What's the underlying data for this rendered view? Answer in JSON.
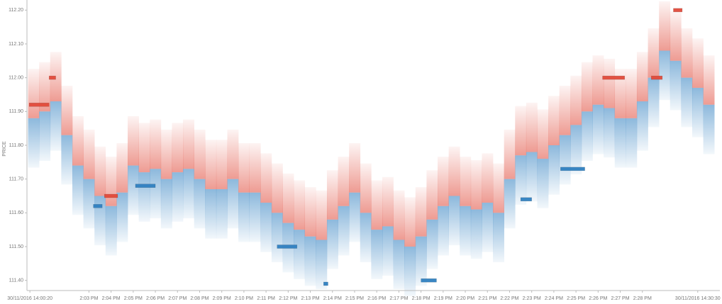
{
  "chart_data": {
    "type": "heatmap",
    "ylabel": "PRICE",
    "x": [
      0.5,
      1.0,
      1.5,
      2.0,
      2.5,
      3.0,
      3.5,
      4.0,
      4.5,
      5.0,
      5.5,
      6.0,
      6.5,
      7.0,
      7.5,
      8.0,
      8.5,
      9.0,
      9.5,
      10.0,
      10.5,
      11.0,
      11.5,
      12.0,
      12.5,
      13.0,
      13.5,
      14.0,
      14.5,
      15.0,
      15.5,
      16.0,
      16.5,
      17.0,
      17.5,
      18.0,
      18.5,
      19.0,
      19.5,
      20.0,
      20.5,
      21.0,
      21.5,
      22.0,
      22.5,
      23.0,
      23.5,
      24.0,
      24.5,
      25.0,
      25.5,
      26.0,
      26.5,
      27.0,
      27.5,
      28.0,
      28.5,
      29.0,
      29.5,
      30.0,
      30.5,
      31.0
    ],
    "mid": [
      111.88,
      111.9,
      111.93,
      111.83,
      111.74,
      111.7,
      111.65,
      111.62,
      111.66,
      111.74,
      111.72,
      111.73,
      111.7,
      111.72,
      111.73,
      111.7,
      111.67,
      111.67,
      111.7,
      111.66,
      111.66,
      111.63,
      111.6,
      111.57,
      111.55,
      111.53,
      111.52,
      111.58,
      111.62,
      111.66,
      111.6,
      111.55,
      111.56,
      111.52,
      111.5,
      111.53,
      111.58,
      111.62,
      111.65,
      111.62,
      111.61,
      111.63,
      111.6,
      111.7,
      111.77,
      111.78,
      111.76,
      111.8,
      111.83,
      111.86,
      111.9,
      111.92,
      111.91,
      111.88,
      111.88,
      111.93,
      112.0,
      112.08,
      112.05,
      112.0,
      111.97,
      111.92
    ],
    "ask_color": "#e04a3a",
    "bid_color": "#2f7fc0",
    "ask_orders": [
      {
        "x": [
          0.3,
          1.2
        ],
        "price": 111.92
      },
      {
        "x": [
          1.2,
          1.5
        ],
        "price": 112.0
      },
      {
        "x": [
          3.7,
          4.3
        ],
        "price": 111.65
      },
      {
        "x": [
          26.2,
          27.2
        ],
        "price": 112.0
      },
      {
        "x": [
          28.4,
          28.9
        ],
        "price": 112.0
      },
      {
        "x": [
          29.4,
          29.8
        ],
        "price": 112.2
      }
    ],
    "bid_orders": [
      {
        "x": [
          3.2,
          3.6
        ],
        "price": 111.62
      },
      {
        "x": [
          5.1,
          6.0
        ],
        "price": 111.68
      },
      {
        "x": [
          11.5,
          12.4
        ],
        "price": 111.5
      },
      {
        "x": [
          13.6,
          13.8
        ],
        "price": 111.39
      },
      {
        "x": [
          18.0,
          18.7
        ],
        "price": 111.4
      },
      {
        "x": [
          22.5,
          23.0
        ],
        "price": 111.64
      },
      {
        "x": [
          24.3,
          25.4
        ],
        "price": 111.73
      }
    ],
    "xlim": [
      0.2,
      31.5
    ],
    "ylim": [
      111.37,
      112.23
    ],
    "yticks": [
      {
        "value": 111.4,
        "label": "111.40"
      },
      {
        "value": 111.5,
        "label": "111.50"
      },
      {
        "value": 111.6,
        "label": "111.60"
      },
      {
        "value": 111.7,
        "label": "111.70"
      },
      {
        "value": 111.8,
        "label": "111.80"
      },
      {
        "value": 111.9,
        "label": "111.90"
      },
      {
        "value": 112.0,
        "label": "112.00"
      },
      {
        "value": 112.1,
        "label": "112.10"
      },
      {
        "value": 112.2,
        "label": "112.20"
      }
    ],
    "xticks": [
      {
        "value": 0.333,
        "label": "30/11/2016 14:00:20"
      },
      {
        "value": 3,
        "label": "2:03 PM"
      },
      {
        "value": 4,
        "label": "2:04 PM"
      },
      {
        "value": 5,
        "label": "2:05 PM"
      },
      {
        "value": 6,
        "label": "2:06 PM"
      },
      {
        "value": 7,
        "label": "2:07 PM"
      },
      {
        "value": 8,
        "label": "2:08 PM"
      },
      {
        "value": 9,
        "label": "2:09 PM"
      },
      {
        "value": 10,
        "label": "2:10 PM"
      },
      {
        "value": 11,
        "label": "2:11 PM"
      },
      {
        "value": 12,
        "label": "2:12 PM"
      },
      {
        "value": 13,
        "label": "2:13 PM"
      },
      {
        "value": 14,
        "label": "2:14 PM"
      },
      {
        "value": 15,
        "label": "2:15 PM"
      },
      {
        "value": 16,
        "label": "2:16 PM"
      },
      {
        "value": 17,
        "label": "2:17 PM"
      },
      {
        "value": 18,
        "label": "2:18 PM"
      },
      {
        "value": 19,
        "label": "2:19 PM"
      },
      {
        "value": 20,
        "label": "2:20 PM"
      },
      {
        "value": 21,
        "label": "2:21 PM"
      },
      {
        "value": 22,
        "label": "2:22 PM"
      },
      {
        "value": 23,
        "label": "2:23 PM"
      },
      {
        "value": 24,
        "label": "2:24 PM"
      },
      {
        "value": 25,
        "label": "2:25 PM"
      },
      {
        "value": 26,
        "label": "2:26 PM"
      },
      {
        "value": 27,
        "label": "2:27 PM"
      },
      {
        "value": 28,
        "label": "2:28 PM"
      },
      {
        "value": 30.5,
        "label": "30/11/2016 14:30:30"
      }
    ]
  }
}
